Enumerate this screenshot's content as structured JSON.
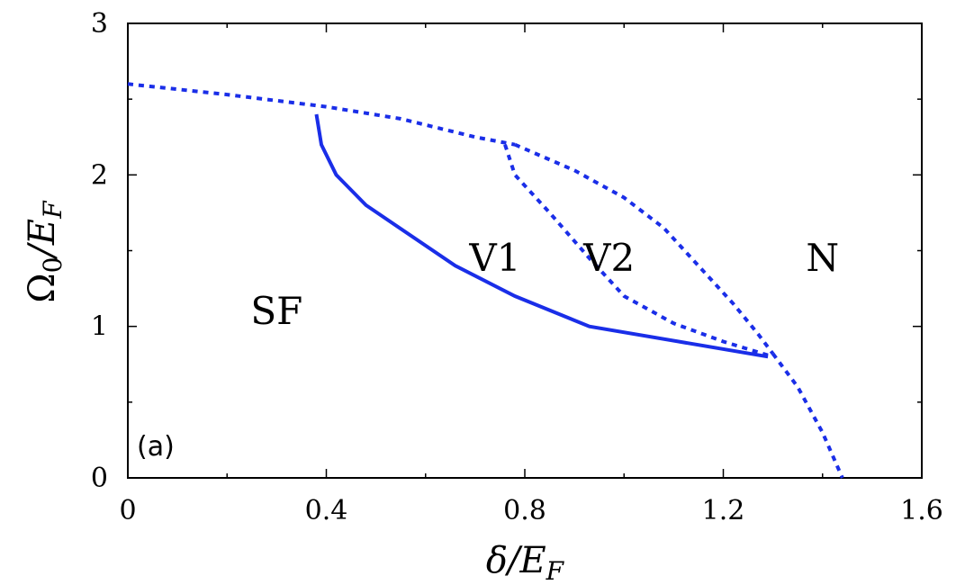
{
  "chart_data": {
    "type": "line",
    "title": "",
    "panel_label": "(a)",
    "xlabel": {
      "prefix": "δ/E",
      "sub": "F"
    },
    "ylabel": {
      "prefix": "Ω",
      "sub0": "0",
      "mid": "/E",
      "sub": "F"
    },
    "xlim": [
      0,
      1.6
    ],
    "ylim": [
      0,
      3
    ],
    "x_ticks": [
      "0",
      "0.4",
      "0.8",
      "1.2",
      "1.6"
    ],
    "x_tick_values": [
      0,
      0.4,
      0.8,
      1.2,
      1.6
    ],
    "y_ticks": [
      "0",
      "1",
      "2",
      "3"
    ],
    "y_tick_values": [
      0,
      1,
      2,
      3
    ],
    "grid": false,
    "color": "#1a2ee8",
    "series": [
      {
        "style": "dotted",
        "x": [
          0,
          0.2,
          0.4,
          0.55,
          0.7,
          0.78
        ],
        "y": [
          2.6,
          2.53,
          2.45,
          2.37,
          2.25,
          2.2
        ]
      },
      {
        "style": "dotted",
        "x": [
          0.78,
          0.9,
          1.0,
          1.08,
          1.15,
          1.22,
          1.27,
          1.3
        ],
        "y": [
          2.2,
          2.03,
          1.85,
          1.65,
          1.4,
          1.15,
          0.95,
          0.82
        ]
      },
      {
        "style": "dotted",
        "x": [
          1.3,
          1.35,
          1.4,
          1.44
        ],
        "y": [
          0.82,
          0.6,
          0.3,
          0.0
        ]
      },
      {
        "style": "dotted",
        "x": [
          0.76,
          0.78,
          0.85,
          0.93,
          1.0,
          1.1,
          1.2,
          1.3
        ],
        "y": [
          2.2,
          2.0,
          1.75,
          1.45,
          1.2,
          1.02,
          0.9,
          0.8
        ]
      },
      {
        "style": "solid",
        "x": [
          0.38,
          0.39,
          0.42,
          0.48,
          0.66,
          0.78,
          0.93,
          1.29
        ],
        "y": [
          2.4,
          2.2,
          2.0,
          1.8,
          1.4,
          1.2,
          1.0,
          0.8
        ]
      }
    ],
    "annotations": [
      {
        "text": "SF",
        "x": 0.3,
        "y": 1.1
      },
      {
        "text": "V1",
        "x": 0.74,
        "y": 1.45
      },
      {
        "text": "V2",
        "x": 0.97,
        "y": 1.45
      },
      {
        "text": "N",
        "x": 1.4,
        "y": 1.45
      }
    ]
  }
}
